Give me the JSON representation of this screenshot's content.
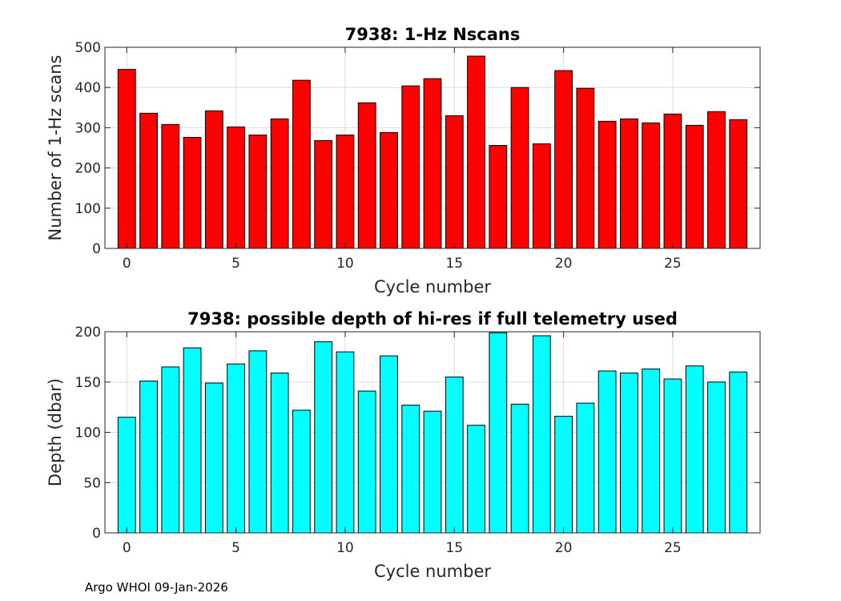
{
  "footer": "Argo WHOI 09-Jan-2026",
  "chart_data": [
    {
      "type": "bar",
      "title": "7938: 1-Hz Nscans",
      "xlabel": "Cycle number",
      "ylabel": "Number of 1-Hz scans",
      "color": "#ff0000",
      "grid": true,
      "xlim": [
        -1,
        29
      ],
      "ylim": [
        0,
        500
      ],
      "xticks": [
        0,
        5,
        10,
        15,
        20,
        25
      ],
      "yticks": [
        0,
        100,
        200,
        300,
        400,
        500
      ],
      "x": [
        0,
        1,
        2,
        3,
        4,
        5,
        6,
        7,
        8,
        9,
        10,
        11,
        12,
        13,
        14,
        15,
        16,
        17,
        18,
        19,
        20,
        21,
        22,
        23,
        24,
        25,
        26,
        27,
        28
      ],
      "values": [
        445,
        336,
        308,
        276,
        342,
        302,
        282,
        322,
        418,
        268,
        282,
        362,
        288,
        404,
        422,
        330,
        478,
        256,
        400,
        260,
        442,
        398,
        316,
        322,
        312,
        334,
        306,
        340,
        320
      ]
    },
    {
      "type": "bar",
      "title": "7938: possible depth of hi-res if full telemetry used",
      "xlabel": "Cycle number",
      "ylabel": "Depth (dbar)",
      "color": "#00ffff",
      "grid": true,
      "xlim": [
        -1,
        29
      ],
      "ylim": [
        0,
        200
      ],
      "xticks": [
        0,
        5,
        10,
        15,
        20,
        25
      ],
      "yticks": [
        0,
        50,
        100,
        150,
        200
      ],
      "x": [
        0,
        1,
        2,
        3,
        4,
        5,
        6,
        7,
        8,
        9,
        10,
        11,
        12,
        13,
        14,
        15,
        16,
        17,
        18,
        19,
        20,
        21,
        22,
        23,
        24,
        25,
        26,
        27,
        28
      ],
      "values": [
        115,
        151,
        165,
        184,
        149,
        168,
        181,
        159,
        122,
        190,
        180,
        141,
        176,
        127,
        121,
        155,
        107,
        199,
        128,
        196,
        116,
        129,
        161,
        159,
        163,
        153,
        166,
        150,
        160
      ]
    }
  ]
}
